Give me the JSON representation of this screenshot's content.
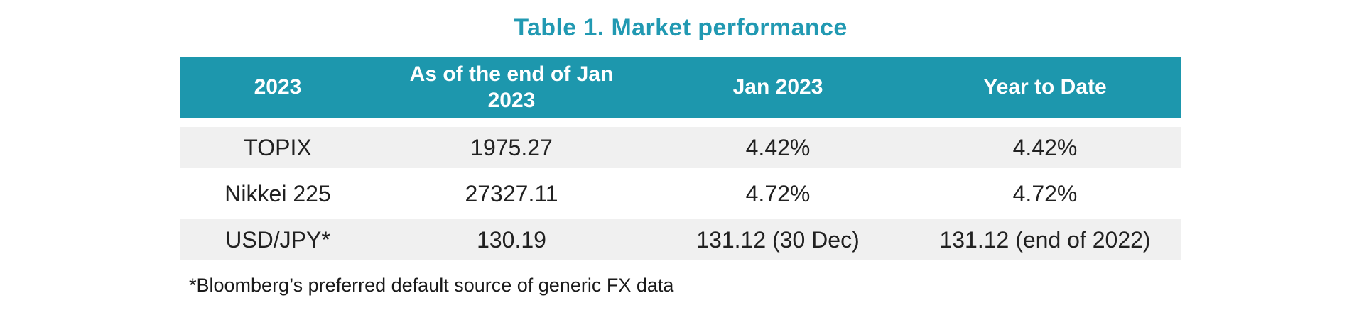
{
  "chart_data": {
    "type": "table",
    "title": "Table 1. Market performance",
    "columns": [
      "2023",
      "As of the end of Jan 2023",
      "Jan 2023",
      "Year to Date"
    ],
    "rows": [
      [
        "TOPIX",
        "1975.27",
        "4.42%",
        "4.42%"
      ],
      [
        "Nikkei 225",
        "27327.11",
        "4.72%",
        "4.72%"
      ],
      [
        "USD/JPY*",
        "130.19",
        "131.12 (30 Dec)",
        "131.12 (end of 2022)"
      ]
    ],
    "footnote": "*Bloomberg’s preferred default source of generic FX data",
    "layout_hints": {
      "header_style": "solid teal band, white bold text",
      "row_striping": "rows 1 and 3 shaded light gray, row 2 white",
      "alignment": "all cells center-aligned"
    }
  },
  "colors": {
    "title_text": "#2199B2",
    "header_background": "#1D97AD",
    "header_text": "#FFFFFF",
    "row_shade": "#F0F0F0",
    "body_text": "#212121",
    "page_background": "#FFFFFF"
  }
}
